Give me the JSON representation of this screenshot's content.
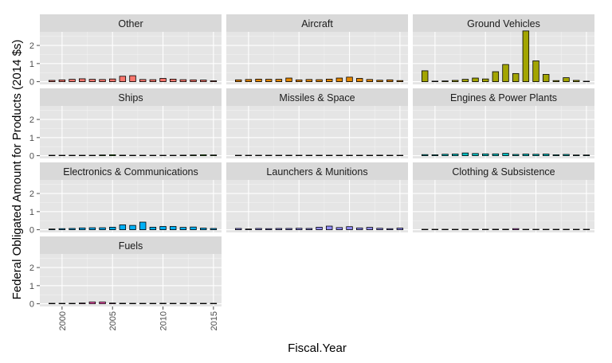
{
  "chart_data": {
    "type": "bar",
    "xlabel": "Fiscal.Year",
    "ylabel": "Federal Obligated Amount for Products (2014 $s)",
    "x": [
      1999,
      2000,
      2001,
      2002,
      2003,
      2004,
      2005,
      2006,
      2007,
      2008,
      2009,
      2010,
      2011,
      2012,
      2013,
      2014,
      2015
    ],
    "xlim": [
      1997.8,
      2015.8
    ],
    "xticks": [
      2000,
      2005,
      2010,
      2015
    ],
    "ylim": [
      -0.15,
      2.75
    ],
    "yticks": [
      0,
      1,
      2
    ],
    "panels": [
      {
        "name": "Other",
        "color": "#F8766D",
        "values": [
          0.07,
          0.1,
          0.13,
          0.16,
          0.13,
          0.12,
          0.15,
          0.3,
          0.33,
          0.12,
          0.11,
          0.18,
          0.14,
          0.11,
          0.1,
          0.09,
          0.05
        ]
      },
      {
        "name": "Aircraft",
        "color": "#E58700",
        "values": [
          0.1,
          0.12,
          0.14,
          0.13,
          0.13,
          0.2,
          0.1,
          0.12,
          0.11,
          0.14,
          0.2,
          0.25,
          0.18,
          0.12,
          0.08,
          0.1,
          0.06
        ]
      },
      {
        "name": "Ground Vehicles",
        "color": "#A3A500",
        "values": [
          0.6,
          0.03,
          0.04,
          0.07,
          0.13,
          0.2,
          0.15,
          0.55,
          0.95,
          0.45,
          2.8,
          1.15,
          0.4,
          0.06,
          0.22,
          0.07,
          0.02
        ]
      },
      {
        "name": "Ships",
        "color": "#39B600",
        "values": [
          0.01,
          0.01,
          0.01,
          0.01,
          0.01,
          0.04,
          0.05,
          0.03,
          0.01,
          0.01,
          0.01,
          0.01,
          0.01,
          0.03,
          0.04,
          0.05,
          0.04
        ]
      },
      {
        "name": "Missiles & Space",
        "color": "#00BF7D",
        "values": [
          0.01,
          0.01,
          0.01,
          0.01,
          0.01,
          0.01,
          0.01,
          0.01,
          0.01,
          0.01,
          0.01,
          0.01,
          0.01,
          0.01,
          0.03,
          0.01,
          0.01
        ]
      },
      {
        "name": "Engines & Power Plants",
        "color": "#00BFC4",
        "values": [
          0.06,
          0.05,
          0.08,
          0.09,
          0.15,
          0.12,
          0.1,
          0.1,
          0.13,
          0.07,
          0.09,
          0.08,
          0.09,
          0.05,
          0.07,
          0.04,
          0.04
        ]
      },
      {
        "name": "Electronics & Communications",
        "color": "#00B0F6",
        "values": [
          0.04,
          0.06,
          0.07,
          0.1,
          0.11,
          0.11,
          0.14,
          0.27,
          0.24,
          0.42,
          0.14,
          0.18,
          0.18,
          0.13,
          0.15,
          0.09,
          0.07
        ]
      },
      {
        "name": "Launchers & Munitions",
        "color": "#9590FF",
        "values": [
          0.07,
          0.04,
          0.07,
          0.06,
          0.07,
          0.07,
          0.08,
          0.07,
          0.14,
          0.2,
          0.12,
          0.17,
          0.1,
          0.13,
          0.08,
          0.06,
          0.09
        ]
      },
      {
        "name": "Clothing & Subsistence",
        "color": "#E76BF3",
        "values": [
          0.01,
          0.01,
          0.01,
          0.02,
          0.02,
          0.01,
          0.02,
          0.03,
          0.03,
          0.06,
          0.02,
          0.02,
          0.02,
          0.02,
          0.02,
          0.02,
          0.01
        ]
      },
      {
        "name": "Fuels",
        "color": "#FF62BC",
        "values": [
          0.0,
          0.0,
          0.01,
          0.04,
          0.1,
          0.1,
          0.04,
          0.03,
          0.01,
          0.01,
          0.01,
          0.03,
          0.01,
          0.01,
          0.03,
          0.01,
          0.0
        ]
      }
    ]
  }
}
